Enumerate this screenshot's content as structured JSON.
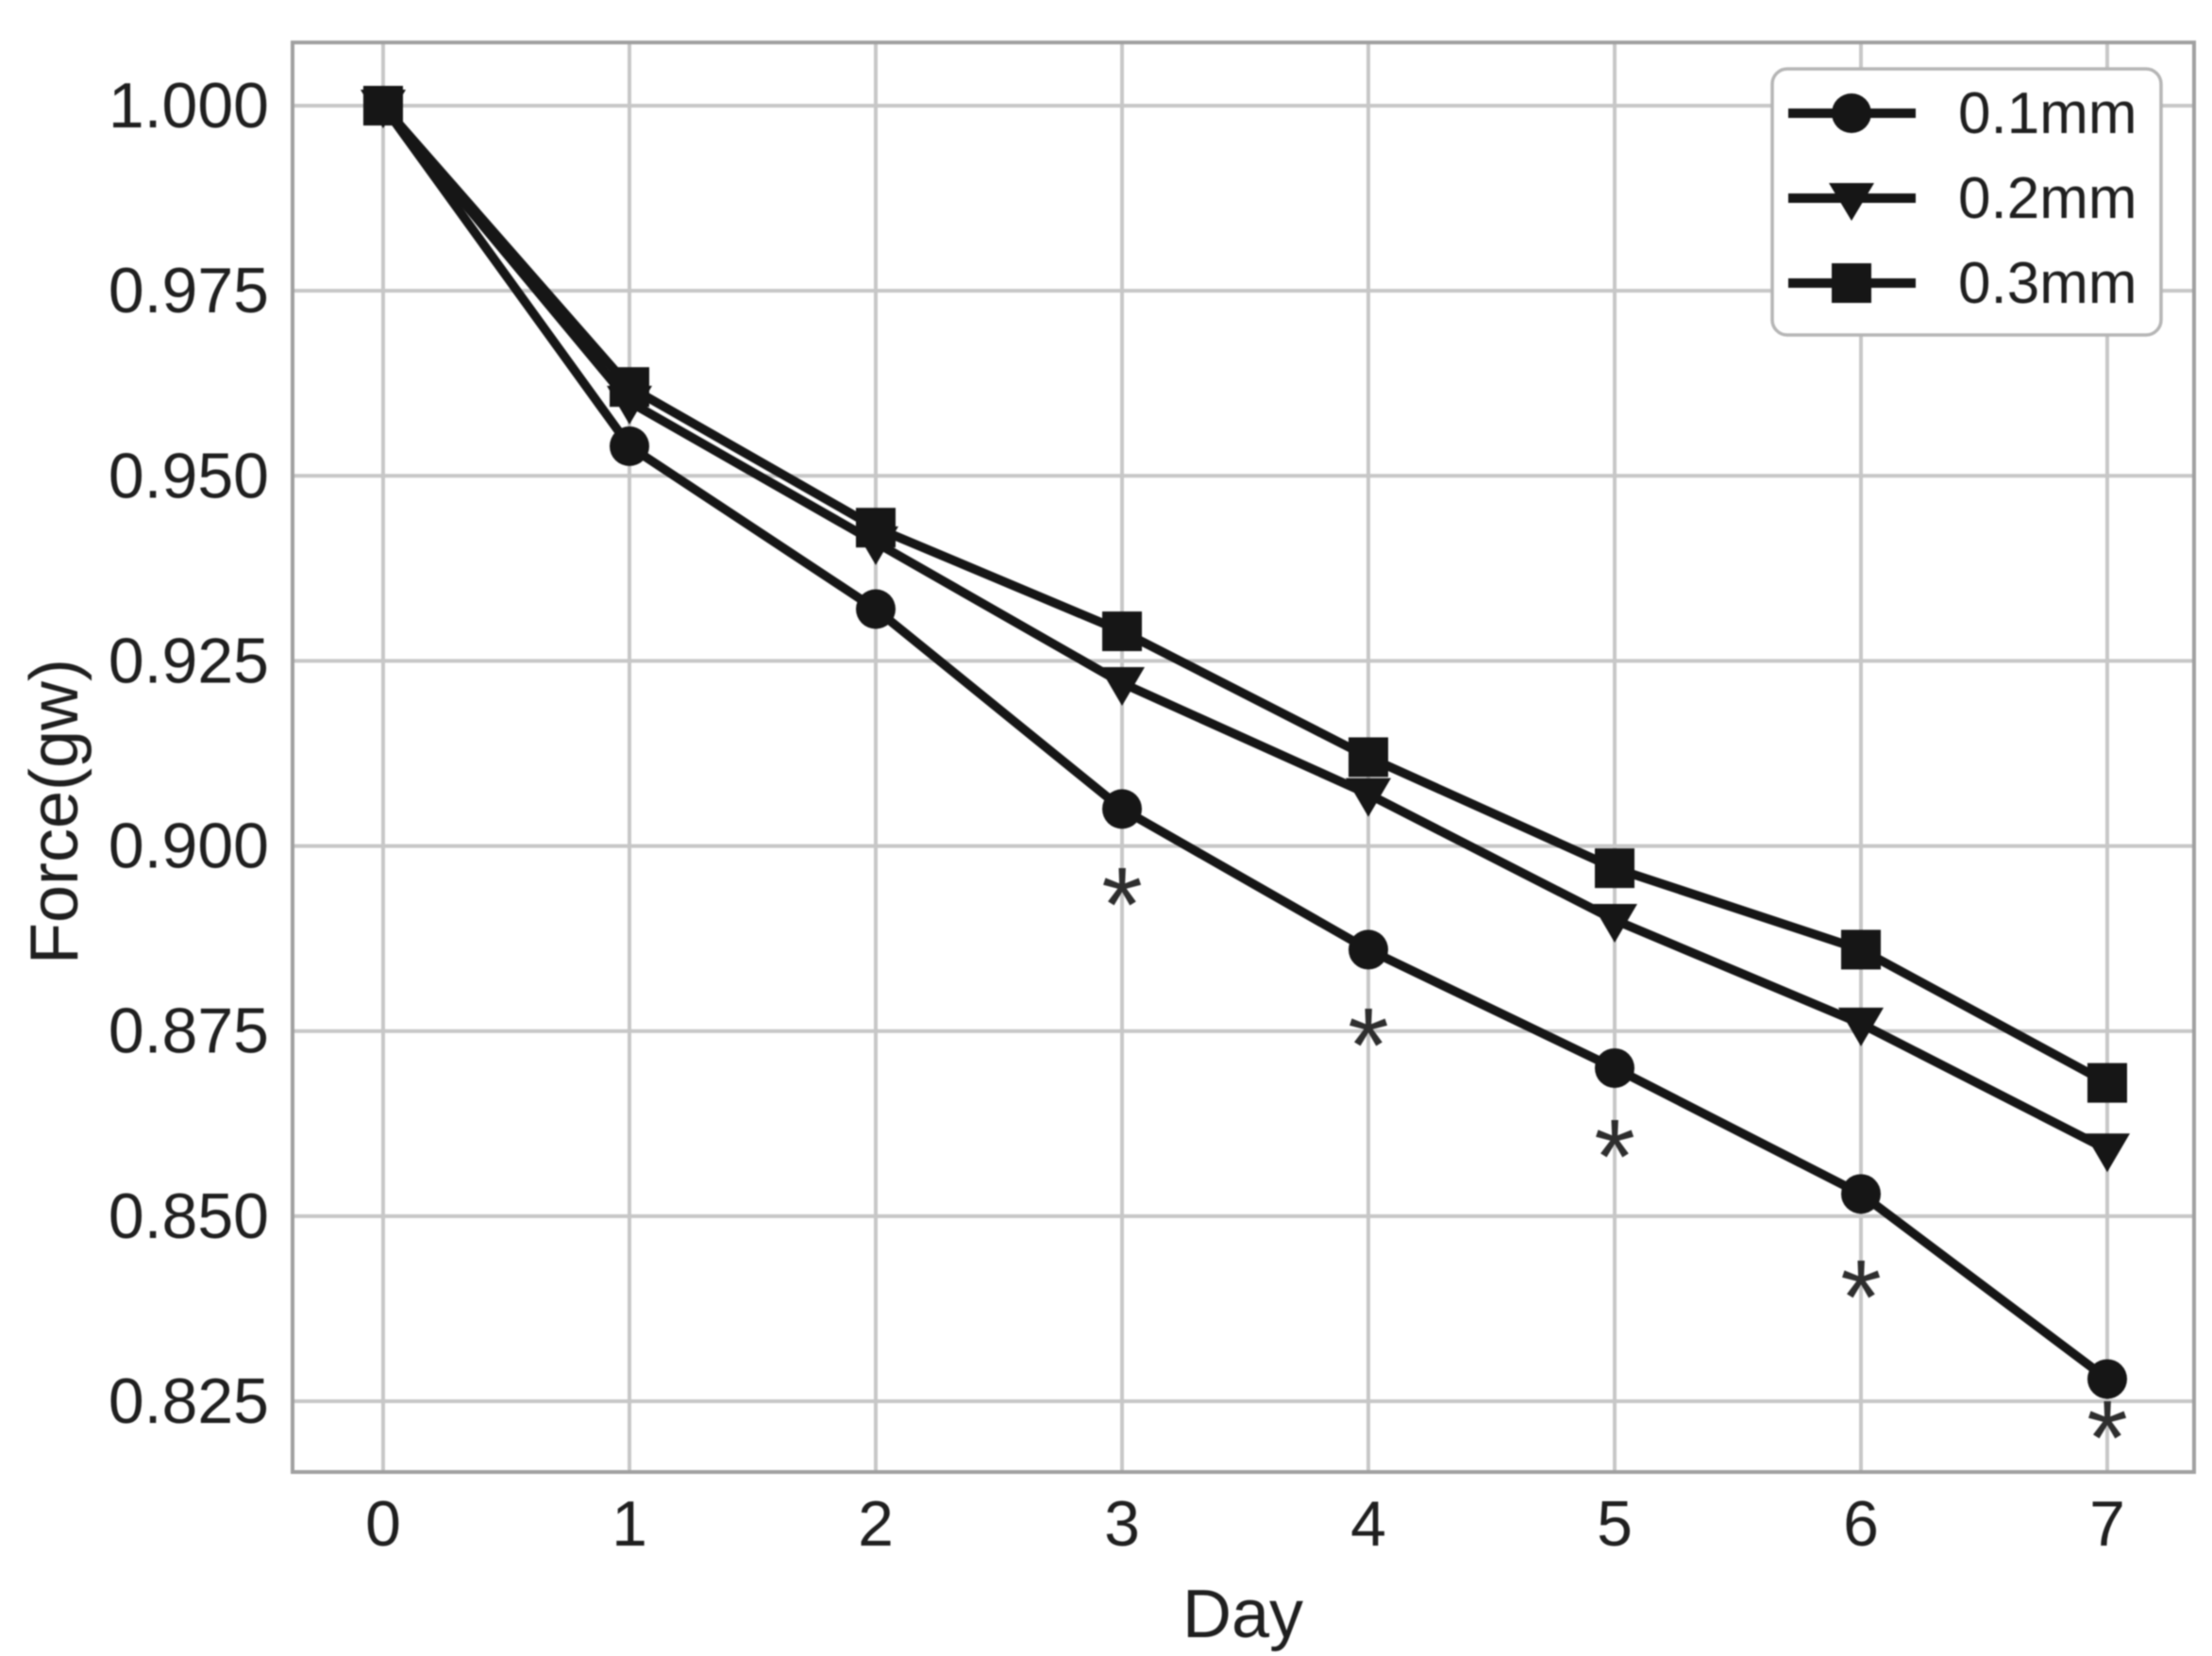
{
  "chart_data": {
    "type": "line",
    "title": "",
    "xlabel": "Day",
    "ylabel": "Force(gw)",
    "x": [
      0,
      1,
      2,
      3,
      4,
      5,
      6,
      7
    ],
    "x_tick_labels": [
      "0",
      "1",
      "2",
      "3",
      "4",
      "5",
      "6",
      "7"
    ],
    "y_ticks": [
      1.0,
      0.975,
      0.95,
      0.925,
      0.9,
      0.875,
      0.85,
      0.825
    ],
    "y_tick_labels": [
      "1.000",
      "0.975",
      "0.950",
      "0.925",
      "0.900",
      "0.875",
      "0.850",
      "0.825"
    ],
    "xlim": [
      -0.37,
      7.35
    ],
    "ylim": [
      0.815,
      1.009
    ],
    "grid": true,
    "legend_position": "upper right",
    "series": [
      {
        "name": "0.1mm",
        "marker": "circle",
        "values": [
          1.0,
          0.954,
          0.932,
          0.905,
          0.886,
          0.87,
          0.853,
          0.828
        ]
      },
      {
        "name": "0.2mm",
        "marker": "triangle-down",
        "values": [
          1.0,
          0.96,
          0.941,
          0.922,
          0.907,
          0.89,
          0.876,
          0.859
        ]
      },
      {
        "name": "0.3mm",
        "marker": "square",
        "values": [
          1.0,
          0.962,
          0.943,
          0.929,
          0.912,
          0.897,
          0.886,
          0.868
        ]
      }
    ],
    "annotations": [
      {
        "text": "*",
        "x": 3,
        "y": 0.894
      },
      {
        "text": "*",
        "x": 4,
        "y": 0.875
      },
      {
        "text": "*",
        "x": 5,
        "y": 0.86
      },
      {
        "text": "*",
        "x": 6,
        "y": 0.841
      },
      {
        "text": "*",
        "x": 7,
        "y": 0.822
      }
    ],
    "colors": {
      "line": "#161616",
      "marker": "#161616",
      "grid": "#c7c7c7",
      "spine": "#a0a0a0",
      "text": "#1f1f1f",
      "annotation": "#2e2e2e",
      "background": "#ffffff",
      "legend_border": "#b5b5b5"
    }
  }
}
